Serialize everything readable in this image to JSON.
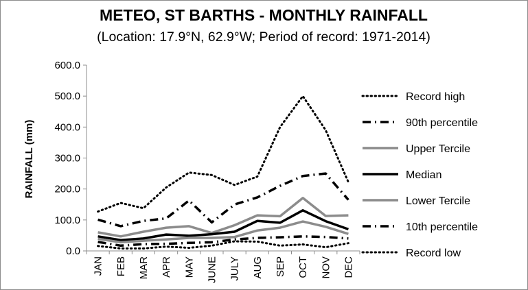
{
  "chart_data": {
    "type": "line",
    "title": "METEO, ST BARTHS - MONTHLY RAINFALL",
    "subtitle": "(Location: 17.9°N, 62.9°W; Period of record: 1971-2014)",
    "xlabel": "",
    "ylabel": "RAINFALL (mm)",
    "ylim": [
      0,
      600
    ],
    "yticks": [
      "0.0",
      "100.0",
      "200.0",
      "300.0",
      "400.0",
      "500.0",
      "600.0"
    ],
    "grid": false,
    "legend_position": "right",
    "categories": [
      "JAN",
      "FEB",
      "MAR",
      "APR",
      "MAY",
      "JUNE",
      "JULY",
      "AUG",
      "SEP",
      "OCT",
      "NOV",
      "DEC"
    ],
    "series": [
      {
        "name": "Record high",
        "style": "dotted",
        "color": "#000000",
        "values": [
          127,
          155,
          138,
          205,
          253,
          245,
          213,
          240,
          400,
          500,
          390,
          222
        ]
      },
      {
        "name": "90th percentile",
        "style": "dashdot",
        "color": "#000000",
        "values": [
          101,
          80,
          97,
          105,
          163,
          92,
          150,
          173,
          210,
          242,
          250,
          165
        ]
      },
      {
        "name": "Upper Tercile",
        "style": "solid",
        "color": "#8c8c8c",
        "values": [
          60,
          47,
          62,
          75,
          80,
          58,
          83,
          115,
          112,
          171,
          113,
          115
        ]
      },
      {
        "name": "Median",
        "style": "solid",
        "color": "#000000",
        "values": [
          47,
          35,
          40,
          53,
          49,
          54,
          62,
          97,
          91,
          131,
          96,
          70
        ]
      },
      {
        "name": "Lower Tercile",
        "style": "solid",
        "color": "#8c8c8c",
        "values": [
          39,
          28,
          33,
          37,
          42,
          42,
          45,
          66,
          75,
          95,
          78,
          55
        ]
      },
      {
        "name": "10th percentile",
        "style": "dashdot",
        "color": "#000000",
        "values": [
          29,
          17,
          22,
          23,
          26,
          28,
          37,
          42,
          44,
          47,
          45,
          40
        ]
      },
      {
        "name": "Record low",
        "style": "dotted",
        "color": "#000000",
        "values": [
          16,
          8,
          8,
          14,
          10,
          17,
          31,
          30,
          17,
          21,
          12,
          25
        ]
      }
    ]
  }
}
